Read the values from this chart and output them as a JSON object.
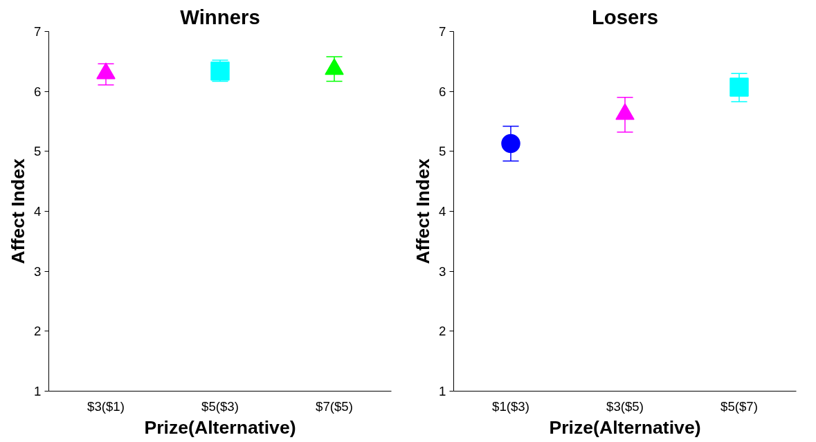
{
  "chart_data": [
    {
      "type": "scatter",
      "title": "Winners",
      "xlabel": "Prize(Alternative)",
      "ylabel": "Affect Index",
      "categories": [
        "$3($1)",
        "$5($3)",
        "$7($5)"
      ],
      "ylim": [
        1,
        7
      ],
      "yticks": [
        1,
        2,
        3,
        4,
        5,
        6,
        7
      ],
      "grid": false,
      "series": [
        {
          "color": "#ff00ff",
          "marker": "triangle",
          "values": [
            6.3,
            null,
            null
          ],
          "errors": [
            [
              6.11,
              6.46
            ],
            null,
            null
          ]
        },
        {
          "color": "#00ffff",
          "marker": "square",
          "values": [
            null,
            6.34,
            null
          ],
          "errors": [
            null,
            [
              6.17,
              6.52
            ],
            null
          ]
        },
        {
          "color": "#00ff00",
          "marker": "triangle",
          "values": [
            null,
            null,
            6.37
          ],
          "errors": [
            null,
            null,
            [
              6.17,
              6.58
            ]
          ]
        }
      ]
    },
    {
      "type": "scatter",
      "title": "Losers",
      "xlabel": "Prize(Alternative)",
      "ylabel": "Affect Index",
      "categories": [
        "$1($3)",
        "$3($5)",
        "$5($7)"
      ],
      "ylim": [
        1,
        7
      ],
      "yticks": [
        1,
        2,
        3,
        4,
        5,
        6,
        7
      ],
      "grid": false,
      "series": [
        {
          "color": "#0000ff",
          "marker": "circle",
          "values": [
            5.13,
            null,
            null
          ],
          "errors": [
            [
              4.84,
              5.42
            ],
            null,
            null
          ]
        },
        {
          "color": "#ff00ff",
          "marker": "triangle",
          "values": [
            null,
            5.62,
            null
          ],
          "errors": [
            null,
            [
              5.32,
              5.9
            ],
            null
          ]
        },
        {
          "color": "#00ffff",
          "marker": "square",
          "values": [
            null,
            null,
            6.07
          ],
          "errors": [
            null,
            null,
            [
              5.83,
              6.3
            ]
          ]
        }
      ]
    }
  ]
}
